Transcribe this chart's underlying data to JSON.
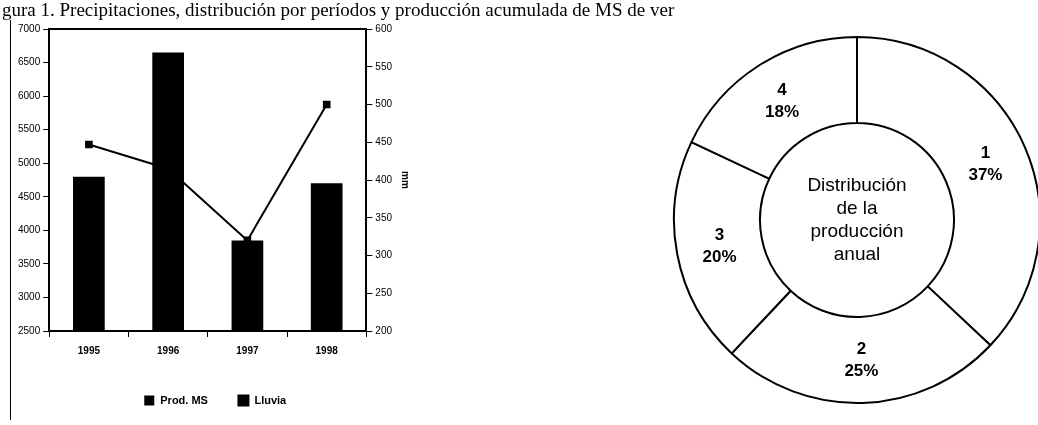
{
  "chart_data": [
    {
      "type": "bar",
      "title": "gura 1. Precipitaciones, distribución por períodos y producción acumulada de MS de ver",
      "y2label": "mm",
      "categories": [
        "1995",
        "1996",
        "1997",
        "1998"
      ],
      "series": [
        {
          "name": "Prod. MS",
          "type": "bar",
          "color": "#000000",
          "values": [
            4800,
            6650,
            3850,
            4700
          ]
        },
        {
          "name": "Lluvia",
          "type": "line",
          "axis": "y2",
          "color": "#000000",
          "values": [
            447,
            415,
            320,
            500
          ]
        }
      ],
      "ylim": [
        2500,
        7000
      ],
      "yticks": [
        2500,
        3000,
        3500,
        4000,
        4500,
        5000,
        5500,
        6000,
        6500,
        7000
      ],
      "y2lim": [
        200,
        600
      ],
      "y2ticks": [
        200,
        250,
        300,
        350,
        400,
        450,
        500,
        550,
        600
      ],
      "grid": false,
      "legend": "bottom",
      "marker": "square",
      "line_style": "solid"
    },
    {
      "type": "donut",
      "title": "Distribución de la producción anual",
      "categories": [
        "1",
        "2",
        "3",
        "4"
      ],
      "values": [
        37,
        25,
        20,
        18
      ],
      "colors": [
        "#ffffff",
        "#ffffff",
        "#ffffff",
        "#ffffff"
      ],
      "value_labels": [
        "37%",
        "25%",
        "20%",
        "18%"
      ],
      "legend": false
    }
  ]
}
